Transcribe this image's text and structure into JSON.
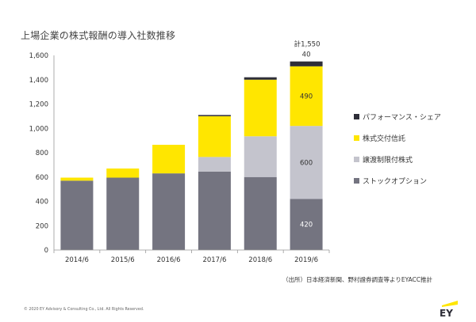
{
  "title": "上場企業の株式報酬の導入社数推移",
  "source": "（出所）日本経済新聞、野村證券調査等よりEYACC推計",
  "copyright": "© 2020 EY Advisory & Consulting Co., Ltd. All Rights Reserved.",
  "logo_text": "EY",
  "chart_data": {
    "type": "bar",
    "stacked": true,
    "categories": [
      "2014/6",
      "2015/6",
      "2016/6",
      "2017/6",
      "2018/6",
      "2019/6"
    ],
    "ylim": [
      0,
      1600
    ],
    "yticks": [
      0,
      200,
      400,
      600,
      800,
      1000,
      1200,
      1400,
      1600
    ],
    "ytick_labels": [
      "0",
      "200",
      "400",
      "600",
      "800",
      "1,000",
      "1,200",
      "1,400",
      "1,600"
    ],
    "grid": false,
    "legend_position": "right",
    "series": [
      {
        "name": "ストックオプション",
        "color": "#747480",
        "values": [
          570,
          595,
          630,
          645,
          600,
          420
        ]
      },
      {
        "name": "譲渡制限付株式",
        "color": "#c4c4cd",
        "values": [
          0,
          0,
          0,
          120,
          335,
          600
        ]
      },
      {
        "name": "株式交付信託",
        "color": "#ffe600",
        "values": [
          25,
          75,
          235,
          335,
          465,
          490
        ]
      },
      {
        "name": "パフォーマンス・シェア",
        "color": "#2e2e38",
        "values": [
          0,
          0,
          0,
          10,
          20,
          40
        ]
      }
    ],
    "data_labels": [
      {
        "series": 0,
        "index": 5,
        "text": "420"
      },
      {
        "series": 1,
        "index": 5,
        "text": "600"
      },
      {
        "series": 2,
        "index": 5,
        "text": "490"
      },
      {
        "series": 3,
        "index": 5,
        "text": "40"
      }
    ],
    "total_label": "計1,550"
  }
}
